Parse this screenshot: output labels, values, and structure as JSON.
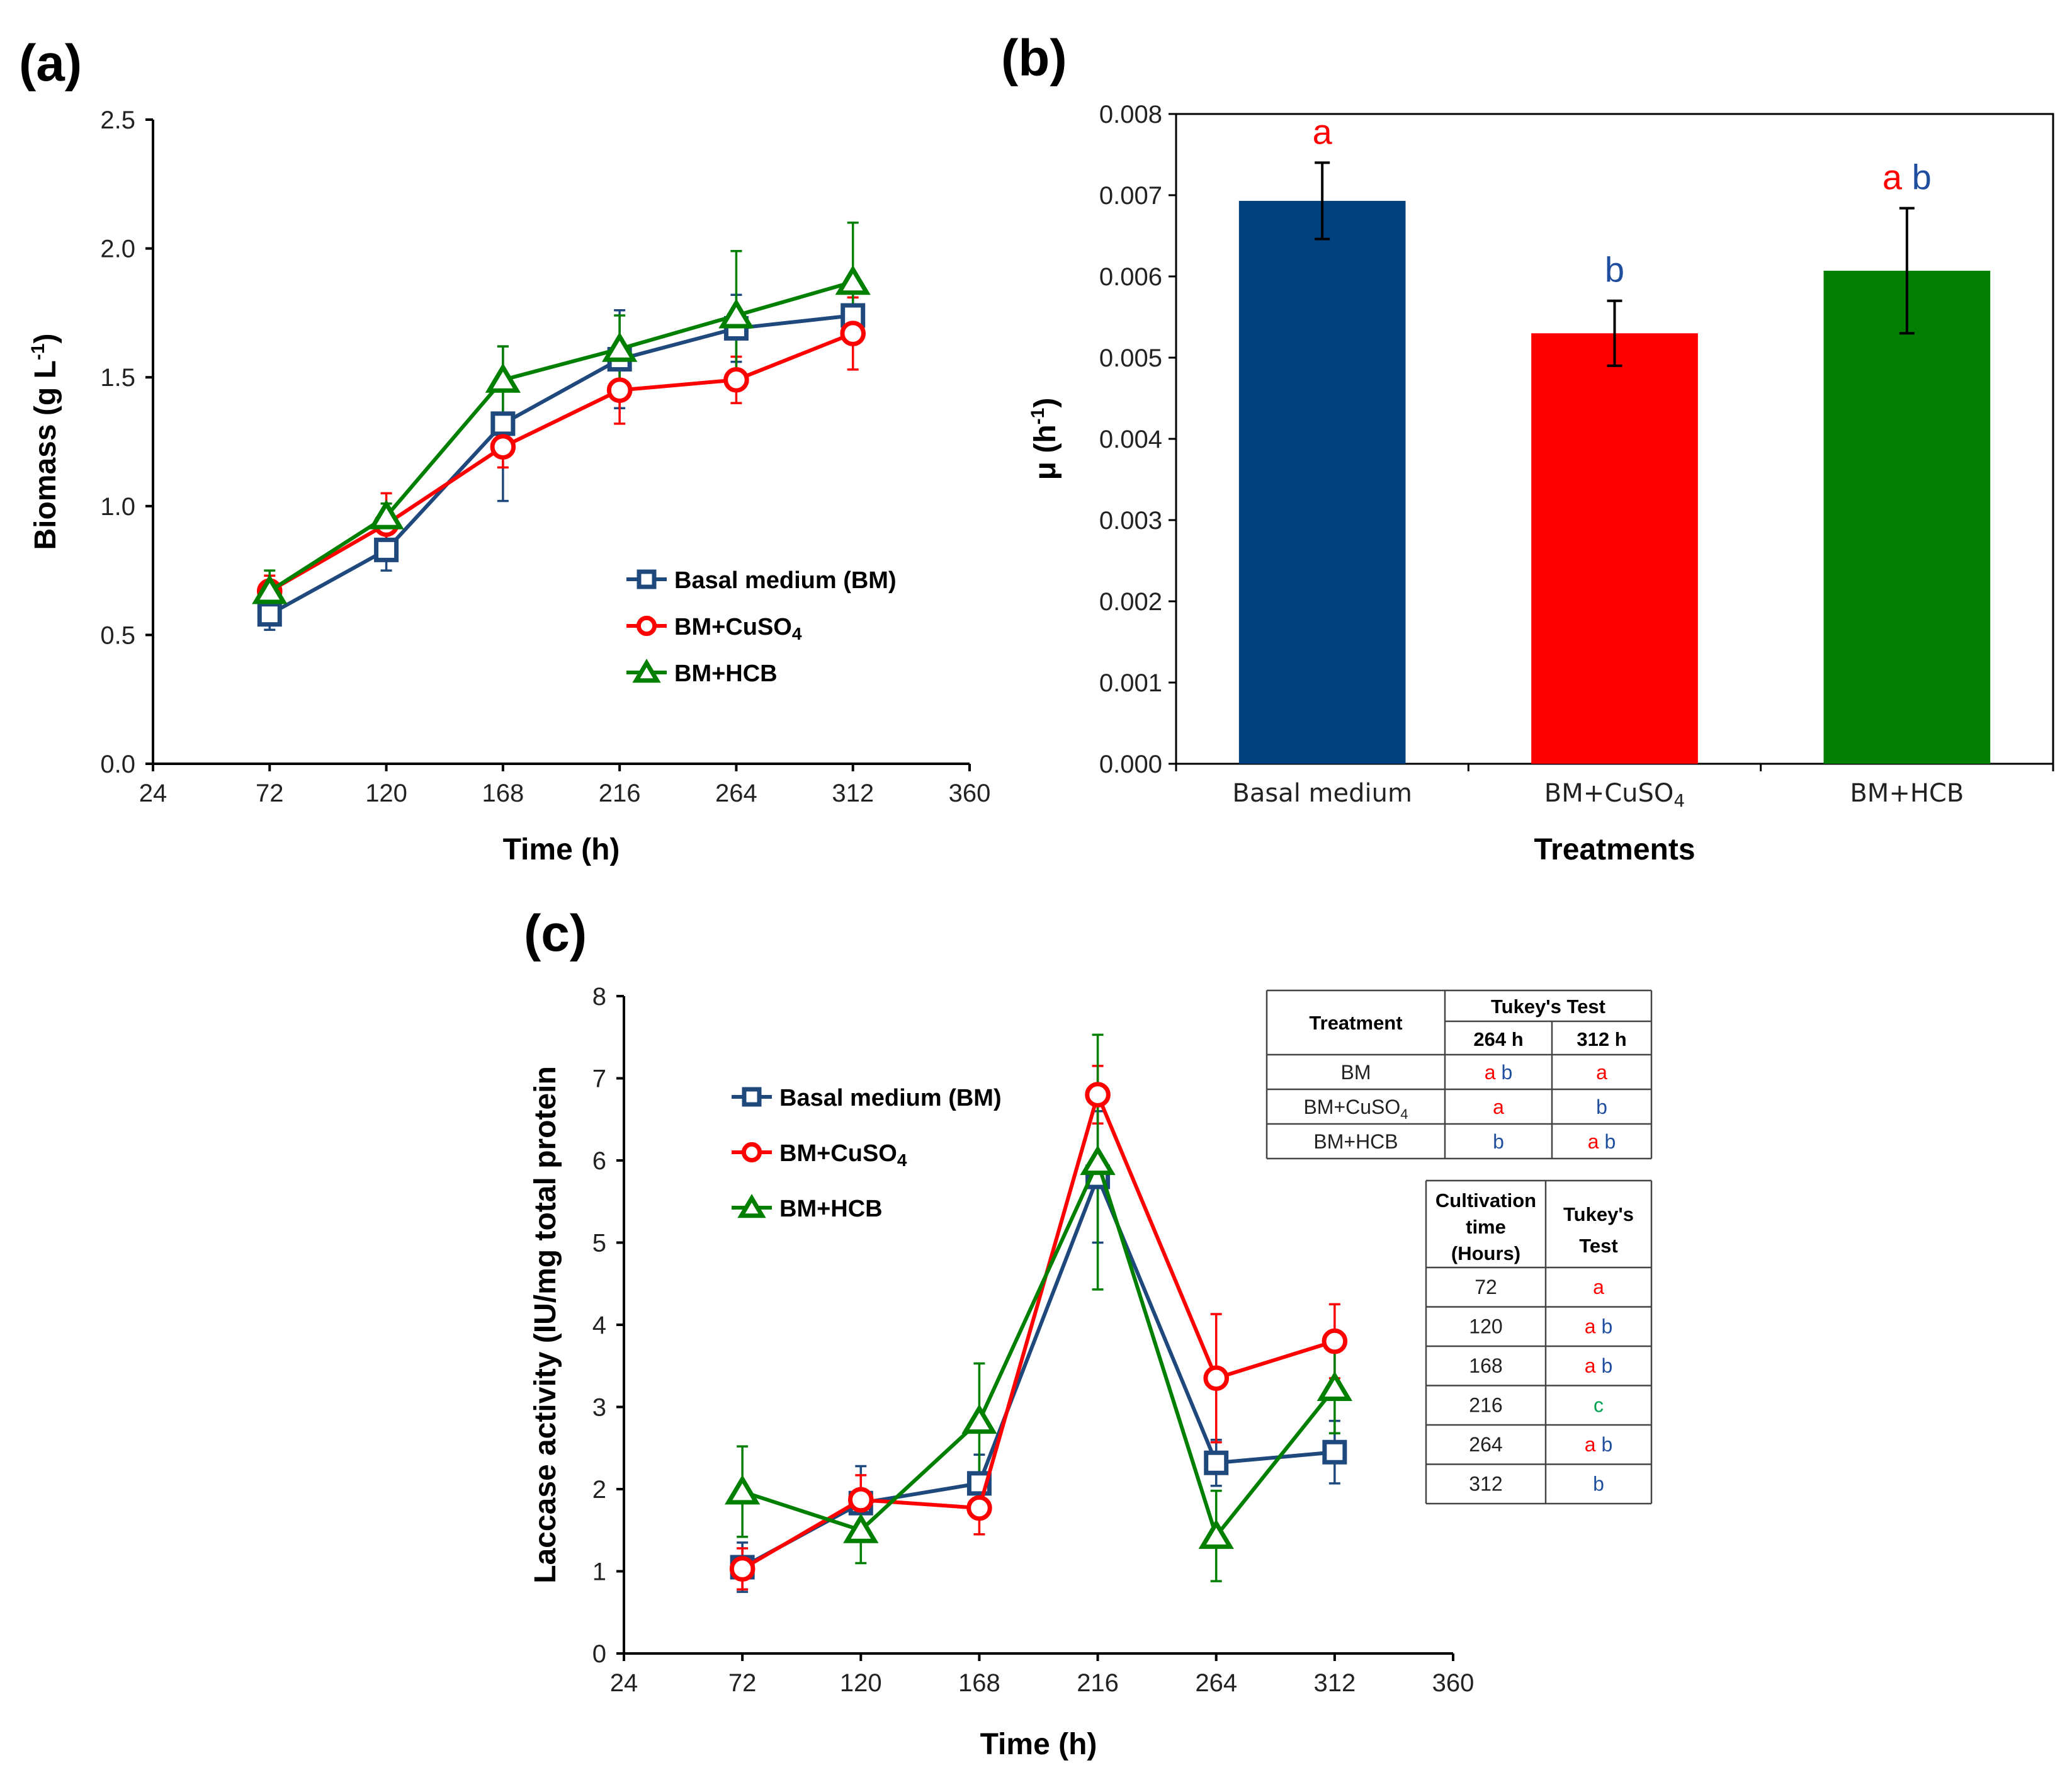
{
  "colors": {
    "red": "#ff0000",
    "blue": "#1f4e9e",
    "green": "#00a050",
    "bm": "#1f497d",
    "cu": "#ff0000",
    "hcb": "#007f00",
    "bar_bm": "#00427f"
  },
  "panel_labels": {
    "a": "(a)",
    "b": "(b)",
    "c": "(c)"
  },
  "chart_data": [
    {
      "id": "a",
      "type": "line",
      "xlabel": "Time (h)",
      "ylabel_main": "Biomass (g L",
      "ylabel_sup": "-1",
      "ylabel_end": ")",
      "xlim": [
        24,
        360
      ],
      "ylim": [
        0,
        2.5
      ],
      "xticks": [
        "24",
        "72",
        "120",
        "168",
        "216",
        "264",
        "312",
        "360"
      ],
      "yticks": [
        "0.0",
        "0.5",
        "1.0",
        "1.5",
        "2.0",
        "2.5"
      ],
      "x": [
        72,
        120,
        168,
        216,
        264,
        312
      ],
      "legend": [
        {
          "label": "Basal medium (BM)",
          "sub": ""
        },
        {
          "label": "BM+CuSO",
          "sub": "4"
        },
        {
          "label": "BM+HCB",
          "sub": ""
        }
      ],
      "series": [
        {
          "name": "Basal medium (BM)",
          "marker": "square",
          "values": [
            0.58,
            0.83,
            1.32,
            1.57,
            1.69,
            1.74
          ],
          "err": [
            0.06,
            0.08,
            0.3,
            0.19,
            0.13,
            0.1
          ]
        },
        {
          "name": "BM+CuSO4",
          "marker": "circle",
          "values": [
            0.67,
            0.93,
            1.23,
            1.45,
            1.49,
            1.67
          ],
          "err": [
            0.06,
            0.12,
            0.08,
            0.13,
            0.09,
            0.14
          ]
        },
        {
          "name": "BM+HCB",
          "marker": "triangle",
          "values": [
            0.67,
            0.96,
            1.49,
            1.61,
            1.74,
            1.87
          ],
          "err": [
            0.08,
            0.05,
            0.13,
            0.13,
            0.25,
            0.23
          ]
        }
      ]
    },
    {
      "id": "b",
      "type": "bar",
      "xlabel": "Treatments",
      "ylabel_main": "μ (h",
      "ylabel_sup": "-1",
      "ylabel_end": ")",
      "ylim": [
        0,
        0.008
      ],
      "yticks": [
        "0.000",
        "0.001",
        "0.002",
        "0.003",
        "0.004",
        "0.005",
        "0.006",
        "0.007",
        "0.008"
      ],
      "categories": [
        {
          "label": "Basal medium",
          "sub": ""
        },
        {
          "label": "BM+CuSO",
          "sub": "4"
        },
        {
          "label": "BM+HCB",
          "sub": ""
        }
      ],
      "values": [
        0.00693,
        0.0053,
        0.00607
      ],
      "err": [
        0.00047,
        0.0004,
        0.00077
      ],
      "letters": [
        [
          {
            "t": "a",
            "c": "red"
          }
        ],
        [
          {
            "t": "b",
            "c": "blue"
          }
        ],
        [
          {
            "t": "a",
            "c": "red"
          },
          {
            "t": "b",
            "c": "blue"
          }
        ]
      ]
    },
    {
      "id": "c",
      "type": "line",
      "xlabel": "Time (h)",
      "ylabel": "Laccase activity (IU/mg total protein",
      "xlim": [
        24,
        360
      ],
      "ylim": [
        0,
        8
      ],
      "xticks": [
        "24",
        "72",
        "120",
        "168",
        "216",
        "264",
        "312",
        "360"
      ],
      "yticks": [
        "0",
        "1",
        "2",
        "3",
        "4",
        "5",
        "6",
        "7",
        "8"
      ],
      "x": [
        72,
        120,
        168,
        216,
        264,
        312
      ],
      "legend": [
        {
          "label": "Basal medium (BM)",
          "sub": ""
        },
        {
          "label": "BM+CuSO",
          "sub": "4"
        },
        {
          "label": "BM+HCB",
          "sub": ""
        }
      ],
      "series": [
        {
          "name": "Basal medium (BM)",
          "marker": "square",
          "values": [
            1.05,
            1.83,
            2.07,
            5.8,
            2.32,
            2.45
          ],
          "err": [
            0.3,
            0.45,
            0.35,
            0.8,
            0.28,
            0.38
          ]
        },
        {
          "name": "BM+CuSO4",
          "marker": "circle",
          "values": [
            1.03,
            1.87,
            1.77,
            6.8,
            3.35,
            3.8
          ],
          "err": [
            0.25,
            0.3,
            0.32,
            0.35,
            0.78,
            0.45
          ]
        },
        {
          "name": "BM+HCB",
          "marker": "triangle",
          "values": [
            1.97,
            1.5,
            2.83,
            5.98,
            1.43,
            3.23
          ],
          "err": [
            0.55,
            0.4,
            0.7,
            1.55,
            0.55,
            0.55
          ]
        }
      ]
    }
  ],
  "table1": {
    "header_treatment": "Treatment",
    "header_test": "Tukey's Test",
    "col1": "264 h",
    "col2": "312 h",
    "rows": [
      {
        "name": "BM",
        "sub": "",
        "c1": [
          {
            "t": "a",
            "c": "red"
          },
          {
            "t": "b",
            "c": "blue"
          }
        ],
        "c2": [
          {
            "t": "a",
            "c": "red"
          }
        ]
      },
      {
        "name": "BM+CuSO",
        "sub": "4",
        "c1": [
          {
            "t": "a",
            "c": "red"
          }
        ],
        "c2": [
          {
            "t": "b",
            "c": "blue"
          }
        ]
      },
      {
        "name": "BM+HCB",
        "sub": "",
        "c1": [
          {
            "t": "b",
            "c": "blue"
          }
        ],
        "c2": [
          {
            "t": "a",
            "c": "red"
          },
          {
            "t": "b",
            "c": "blue"
          }
        ]
      }
    ]
  },
  "table2": {
    "header_time": [
      "Cultivation",
      "time",
      "(Hours)"
    ],
    "header_test": [
      "Tukey's",
      "Test"
    ],
    "rows": [
      {
        "time": "72",
        "sig": [
          {
            "t": "a",
            "c": "red"
          }
        ]
      },
      {
        "time": "120",
        "sig": [
          {
            "t": "a",
            "c": "red"
          },
          {
            "t": "b",
            "c": "blue"
          }
        ]
      },
      {
        "time": "168",
        "sig": [
          {
            "t": "a",
            "c": "red"
          },
          {
            "t": "b",
            "c": "blue"
          }
        ]
      },
      {
        "time": "216",
        "sig": [
          {
            "t": "c",
            "c": "green"
          }
        ]
      },
      {
        "time": "264",
        "sig": [
          {
            "t": "a",
            "c": "red"
          },
          {
            "t": "b",
            "c": "blue"
          }
        ]
      },
      {
        "time": "312",
        "sig": [
          {
            "t": "b",
            "c": "blue"
          }
        ]
      }
    ]
  }
}
